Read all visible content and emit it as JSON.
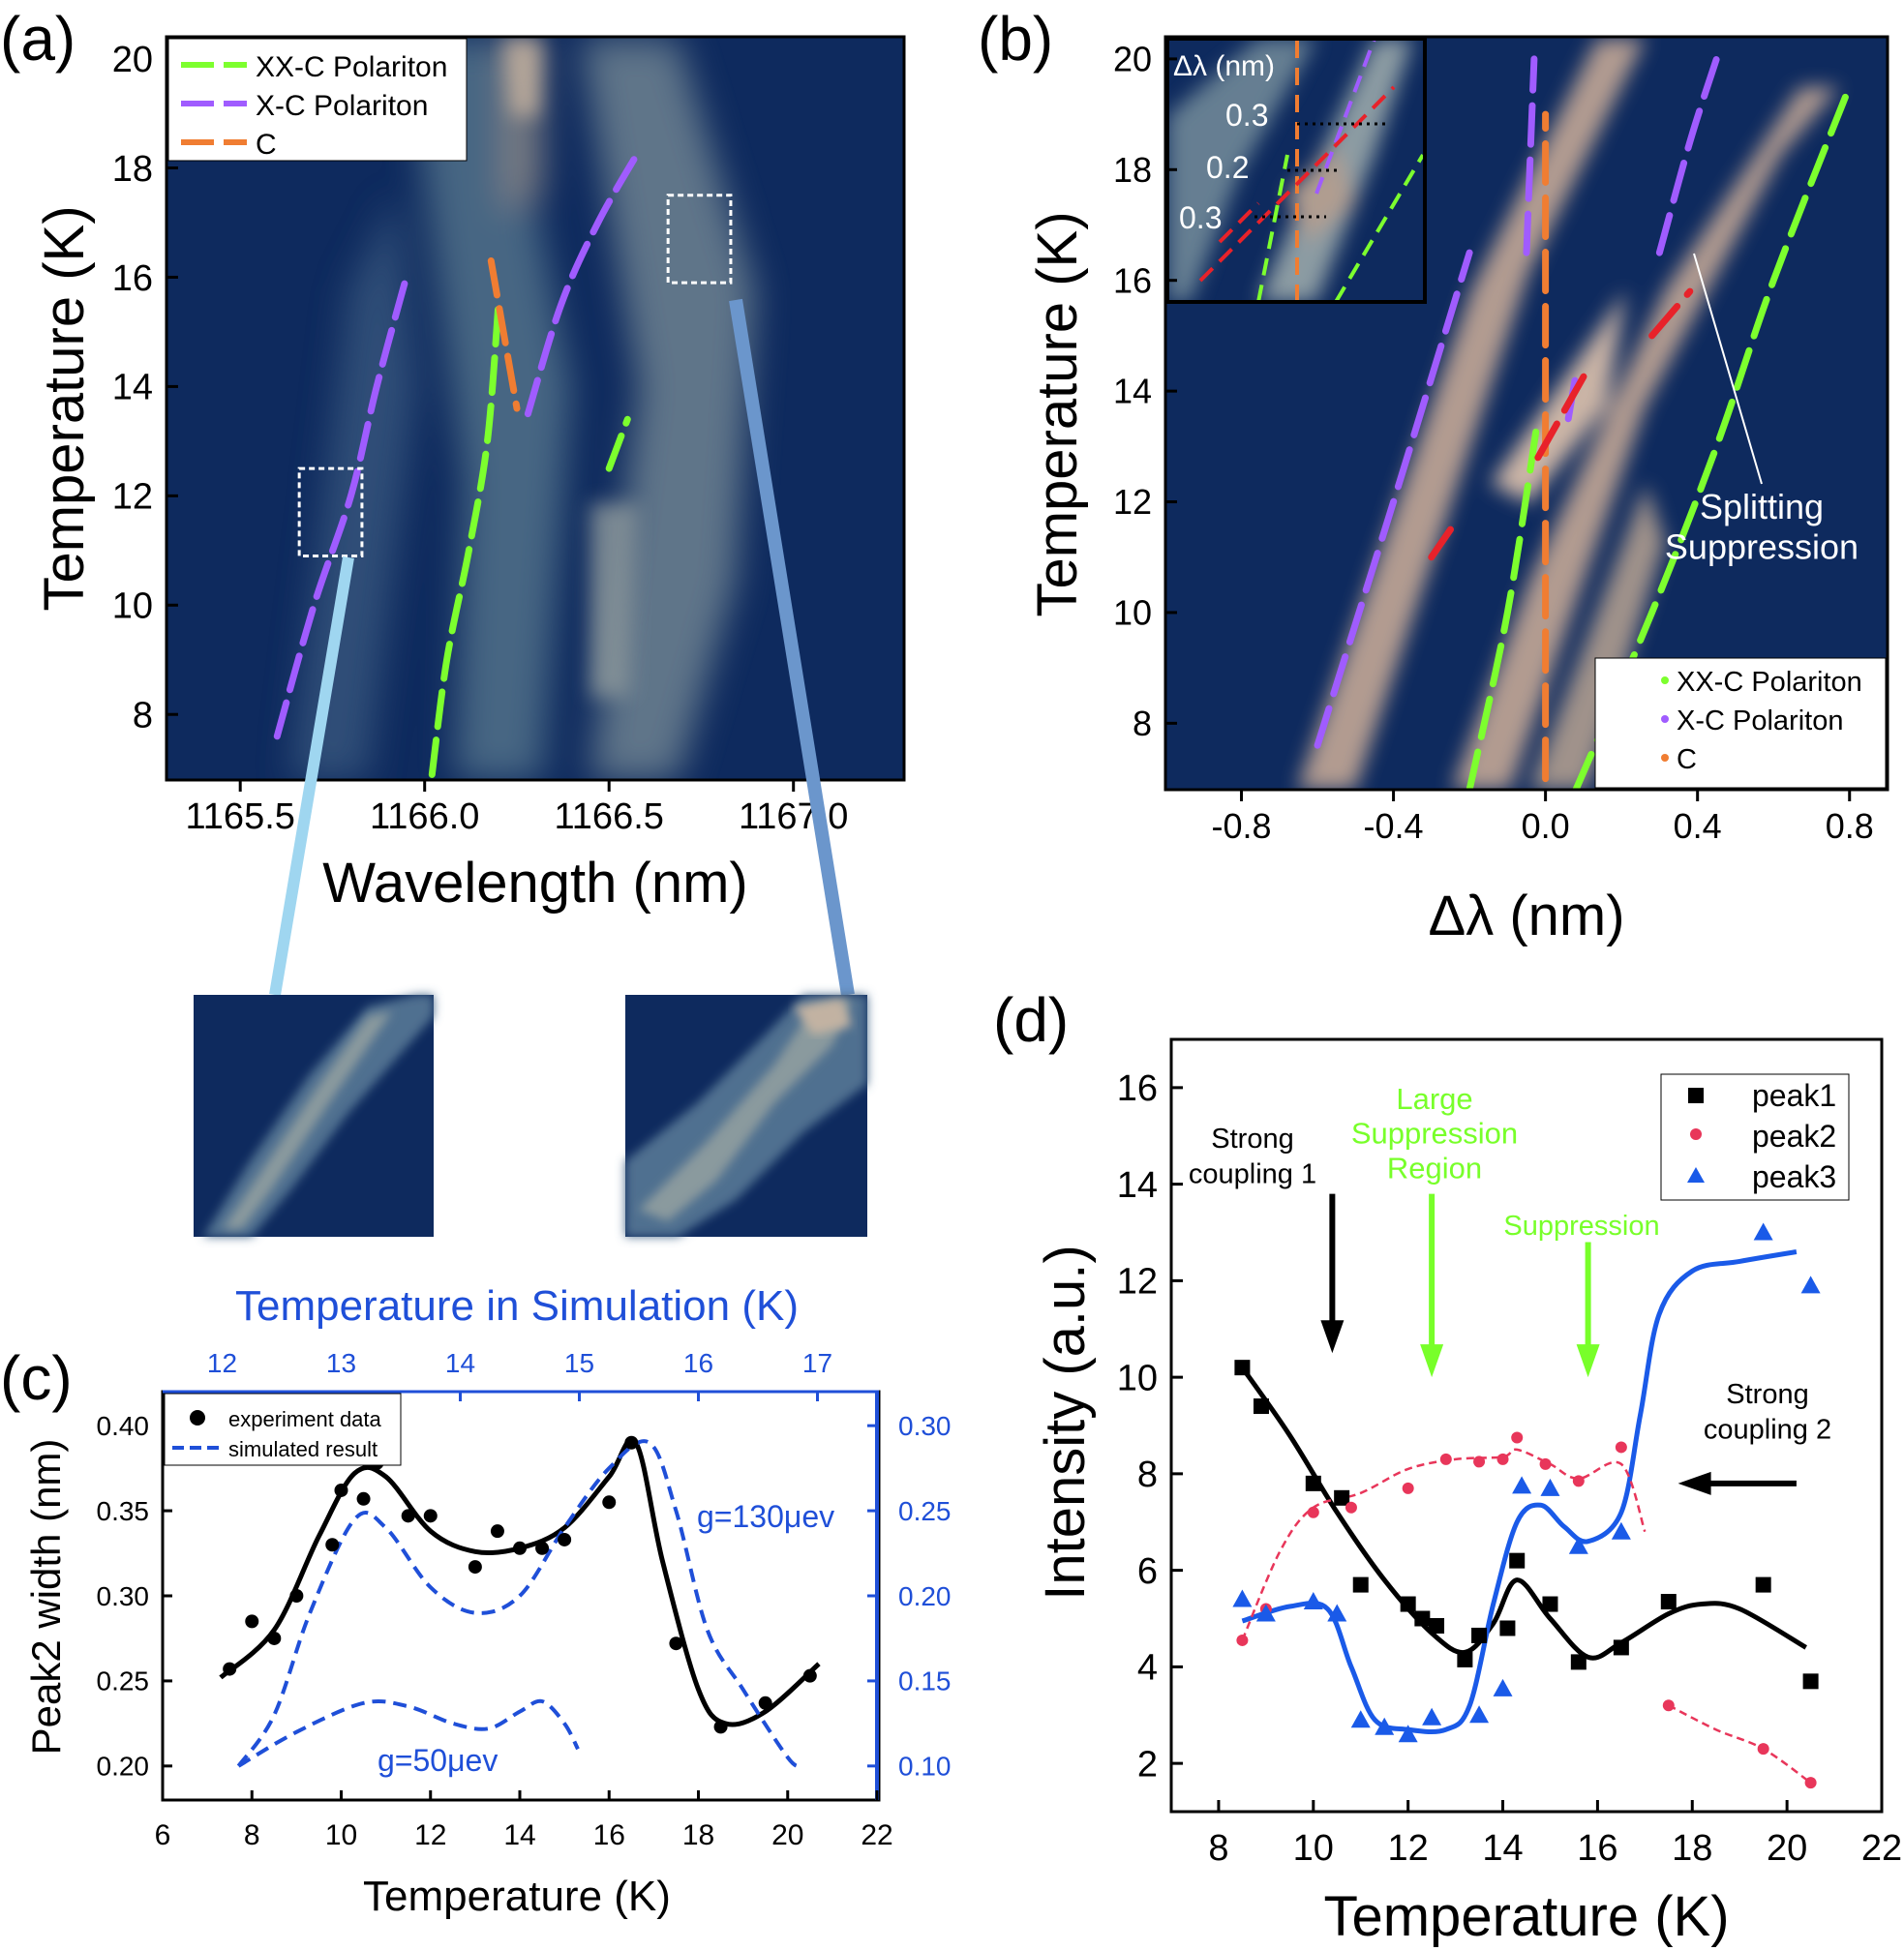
{
  "colors": {
    "xx_c_polariton": "#7dff2e",
    "x_c_polariton": "#a05cff",
    "cavity": "#f07d32",
    "anticrossing": "#e8222a",
    "map_background": "#0e2a5e",
    "map_bright": "#d8bfa8",
    "simulation_axis": "#1f4fd8",
    "peak1": "#000000",
    "peak2": "#e8365a",
    "peak3": "#1a5ae8",
    "annotation_green": "#78ff2a"
  },
  "chart_data": [
    {
      "panel_label": "(a)",
      "type": "heatmap",
      "xlabel": "Wavelength (nm)",
      "ylabel": "Temperature (K)",
      "xlim": [
        1165.3,
        1167.3
      ],
      "ylim": [
        6.8,
        20.4
      ],
      "xticks": [
        "1165.5",
        "1166.0",
        "1166.5",
        "1167.0"
      ],
      "yticks": [
        "8",
        "10",
        "12",
        "14",
        "16",
        "18",
        "20"
      ],
      "legend": [
        "XX-C Polariton",
        "X-C Polariton",
        "C"
      ],
      "legend_position": "top-left",
      "series": [
        {
          "name": "X-C Polariton",
          "segments": [
            {
              "x": [
                1165.6,
                1165.7,
                1165.8,
                1165.87,
                1165.95
              ],
              "y": [
                7.6,
                10,
                12,
                14,
                16
              ]
            },
            {
              "x": [
                1166.28,
                1166.37,
                1166.47,
                1166.58
              ],
              "y": [
                13.5,
                15.5,
                17,
                18.3
              ]
            }
          ]
        },
        {
          "name": "XX-C Polariton",
          "segments": [
            {
              "x": [
                1166.02,
                1166.06,
                1166.12,
                1166.17,
                1166.2
              ],
              "y": [
                6.9,
                9,
                11,
                13,
                15.5
              ]
            },
            {
              "x": [
                1166.5,
                1166.55
              ],
              "y": [
                12.5,
                13.4
              ]
            }
          ]
        },
        {
          "name": "C",
          "segments": [
            {
              "x": [
                1166.18,
                1166.25
              ],
              "y": [
                16.3,
                13.6
              ]
            }
          ]
        }
      ],
      "zoom_boxes": [
        {
          "x": [
            1165.66,
            1165.83
          ],
          "y": [
            10.9,
            12.5
          ]
        },
        {
          "x": [
            1166.66,
            1166.83
          ],
          "y": [
            15.9,
            17.5
          ]
        }
      ]
    },
    {
      "panel_label": "(b)",
      "type": "heatmap",
      "xlabel": "Δλ (nm)",
      "ylabel": "Temperature (K)",
      "xlim": [
        -1.0,
        0.9
      ],
      "ylim": [
        6.8,
        20.4
      ],
      "xticks": [
        "-0.8",
        "-0.4",
        "0.0",
        "0.4",
        "0.8"
      ],
      "yticks": [
        "8",
        "10",
        "12",
        "14",
        "16",
        "18",
        "20"
      ],
      "legend": [
        "XX-C Polariton",
        "X-C Polariton",
        "C"
      ],
      "legend_position": "bottom-right",
      "annotation": "Splitting\nSuppression",
      "inset_title": "Δλ (nm)",
      "inset_labels": [
        "0.3",
        "0.2",
        "0.3"
      ],
      "series": [
        {
          "name": "X-C Polariton",
          "segments": [
            {
              "x": [
                -0.6,
                -0.4,
                -0.2
              ],
              "y": [
                7.6,
                12,
                16.5
              ]
            },
            {
              "x": [
                -0.05,
                -0.03
              ],
              "y": [
                16.5,
                20
              ]
            },
            {
              "x": [
                0.3,
                0.38,
                0.45
              ],
              "y": [
                16.5,
                18.5,
                20
              ]
            },
            {
              "x": [
                0.06,
                0.08
              ],
              "y": [
                13.5,
                14.3
              ]
            }
          ]
        },
        {
          "name": "XX-C Polariton",
          "segments": [
            {
              "x": [
                -0.2,
                -0.1,
                -0.02
              ],
              "y": [
                6.8,
                10,
                13.5
              ]
            },
            {
              "x": [
                0.08,
                0.28,
                0.45,
                0.6,
                0.8
              ],
              "y": [
                6.8,
                10,
                13,
                16,
                19.5
              ]
            }
          ]
        },
        {
          "name": "C",
          "segments": [
            {
              "x": [
                0.0,
                0.0
              ],
              "y": [
                7,
                19
              ]
            }
          ]
        },
        {
          "name": "anticrossing",
          "segments": [
            {
              "x": [
                -0.3,
                -0.25
              ],
              "y": [
                11,
                11.5
              ]
            },
            {
              "x": [
                -0.02,
                0.12
              ],
              "y": [
                12.8,
                14.5
              ]
            },
            {
              "x": [
                0.28,
                0.38
              ],
              "y": [
                15,
                15.8
              ]
            }
          ]
        }
      ]
    },
    {
      "panel_label": "(c)",
      "type": "line",
      "xlabel": "Temperature (K)",
      "ylabel": "Peak2 width (nm)",
      "x2label": "Temperature in Simulation (K)",
      "xlim": [
        6,
        22
      ],
      "ylim": [
        0.18,
        0.42
      ],
      "y2lim": [
        0.08,
        0.32
      ],
      "x2lim": [
        11.5,
        17.5
      ],
      "xticks": [
        "6",
        "8",
        "10",
        "12",
        "14",
        "16",
        "18",
        "20",
        "22"
      ],
      "yticks": [
        "0.20",
        "0.25",
        "0.30",
        "0.35",
        "0.40"
      ],
      "x2ticks": [
        "12",
        "13",
        "14",
        "15",
        "16",
        "17"
      ],
      "y2ticks": [
        "0.10",
        "0.15",
        "0.20",
        "0.25",
        "0.30"
      ],
      "legend": [
        "experiment data",
        "simulated result"
      ],
      "legend_position": "top-left",
      "annotations": [
        "g=130μev",
        "g=50μev"
      ],
      "series": [
        {
          "name": "experiment data",
          "x": [
            7.5,
            8,
            8.5,
            9,
            9.8,
            10,
            10.5,
            10.8,
            11.5,
            12,
            13,
            13.5,
            14,
            14.5,
            15,
            16,
            16.5,
            17.5,
            18.5,
            19.5,
            20.5
          ],
          "y": [
            0.257,
            0.285,
            0.275,
            0.3,
            0.33,
            0.362,
            0.357,
            0.378,
            0.347,
            0.347,
            0.317,
            0.338,
            0.328,
            0.328,
            0.333,
            0.355,
            0.39,
            0.272,
            0.223,
            0.237,
            0.253
          ]
        },
        {
          "name": "fit",
          "x": [
            7.3,
            8.5,
            9.5,
            10.3,
            11,
            12,
            13,
            14,
            15,
            16,
            16.6,
            17.2,
            18,
            18.6,
            19.5,
            20.7
          ],
          "y": [
            0.252,
            0.28,
            0.335,
            0.372,
            0.37,
            0.338,
            0.326,
            0.328,
            0.34,
            0.37,
            0.39,
            0.32,
            0.245,
            0.225,
            0.232,
            0.26
          ]
        },
        {
          "name": "g=130μev",
          "x": [
            7.7,
            8.5,
            9.3,
            10.3,
            11,
            12,
            13,
            14,
            15,
            16,
            16.9,
            17.5,
            18.2,
            19,
            20,
            20.3
          ],
          "y2": [
            0.1,
            0.13,
            0.19,
            0.245,
            0.24,
            0.205,
            0.19,
            0.2,
            0.24,
            0.275,
            0.29,
            0.25,
            0.18,
            0.145,
            0.105,
            0.1
          ]
        },
        {
          "name": "g=50μev",
          "x": [
            7.7,
            9,
            10.5,
            11.5,
            12.5,
            13.3,
            14,
            14.5,
            15,
            15.3
          ],
          "y2": [
            0.1,
            0.12,
            0.137,
            0.135,
            0.125,
            0.122,
            0.132,
            0.138,
            0.125,
            0.11
          ]
        }
      ]
    },
    {
      "panel_label": "(d)",
      "type": "scatter",
      "xlabel": "Temperature (K)",
      "ylabel": "Intensity (a.u.)",
      "xlim": [
        7,
        22
      ],
      "ylim": [
        1,
        17
      ],
      "xticks": [
        "8",
        "10",
        "12",
        "14",
        "16",
        "18",
        "20",
        "22"
      ],
      "yticks": [
        "2",
        "4",
        "6",
        "8",
        "10",
        "12",
        "14",
        "16"
      ],
      "legend": [
        "peak1",
        "peak2",
        "peak3"
      ],
      "legend_position": "top-right",
      "annotations": [
        "Strong\ncoupling 1",
        "Large\nSuppression\nRegion",
        "Suppression",
        "Strong\ncoupling 2"
      ],
      "arrows": [
        {
          "x": 10.4,
          "y_from": 13.8,
          "y_to": 10.5,
          "color": "peak1"
        },
        {
          "x": 12.5,
          "y_from": 13.8,
          "y_to": 10,
          "color": "annotation_green"
        },
        {
          "x": 15.8,
          "y_from": 12.8,
          "y_to": 10,
          "color": "annotation_green"
        },
        {
          "x_from": 20.2,
          "x_to": 17.7,
          "y": 7.8,
          "color": "peak1"
        }
      ],
      "series": [
        {
          "name": "peak1",
          "x": [
            8.5,
            8.9,
            10,
            10.6,
            11,
            12,
            12.3,
            12.6,
            13.2,
            13.5,
            14.1,
            14.3,
            15,
            15.6,
            16.5,
            17.5,
            19.5,
            20.5
          ],
          "y": [
            10.2,
            9.4,
            7.8,
            7.5,
            5.7,
            5.3,
            5.0,
            4.85,
            4.15,
            4.65,
            4.8,
            6.2,
            5.3,
            4.1,
            4.4,
            5.35,
            5.7,
            3.7
          ]
        },
        {
          "name": "peak2",
          "x": [
            8.5,
            9,
            10,
            10.8,
            12,
            12.8,
            13.5,
            14,
            14.3,
            14.9,
            15.6,
            16.5,
            17.5,
            19.5,
            20.5
          ],
          "y": [
            4.55,
            5.2,
            7.2,
            7.3,
            7.7,
            8.3,
            8.25,
            8.3,
            8.75,
            8.2,
            7.85,
            8.55,
            3.2,
            2.3,
            1.6
          ]
        },
        {
          "name": "peak3",
          "x": [
            8.5,
            9,
            10,
            10.5,
            11,
            11.5,
            12,
            12.5,
            13.5,
            14,
            14.4,
            15,
            15.6,
            16.5,
            19.5,
            20.5
          ],
          "y": [
            5.4,
            5.1,
            5.35,
            5.1,
            2.9,
            2.75,
            2.6,
            2.95,
            3.0,
            3.55,
            7.75,
            7.7,
            6.5,
            6.8,
            13.0,
            11.9
          ]
        },
        {
          "name": "peak1 fit",
          "x": [
            8.5,
            9.5,
            10.5,
            11.5,
            12.5,
            13.2,
            13.8,
            14.3,
            15,
            15.8,
            16.5,
            17.5,
            18.2,
            19,
            20.4
          ],
          "y": [
            10.2,
            8.8,
            7.2,
            5.8,
            4.7,
            4.3,
            4.9,
            5.8,
            5.0,
            4.2,
            4.5,
            5.1,
            5.3,
            5.2,
            4.4
          ]
        },
        {
          "name": "peak2 fit",
          "x": [
            8.5,
            9.3,
            10,
            11,
            12,
            13,
            14,
            14.3,
            15,
            15.6,
            16.5,
            17
          ],
          "y": [
            4.55,
            6.4,
            7.3,
            7.6,
            8.1,
            8.3,
            8.35,
            8.5,
            8.2,
            7.9,
            8.2,
            6.8
          ]
        },
        {
          "name": "peak2 fit tail",
          "x": [
            17.5,
            18.5,
            19.5,
            20.5
          ],
          "y": [
            3.2,
            2.7,
            2.3,
            1.6
          ]
        },
        {
          "name": "peak3 fit",
          "x": [
            8.5,
            9.5,
            10.3,
            10.8,
            11.3,
            12,
            12.8,
            13.3,
            13.8,
            14.3,
            14.8,
            15.3,
            15.8,
            16.5,
            16.9,
            17.3,
            18,
            19,
            20.2
          ],
          "y": [
            4.95,
            5.25,
            5.2,
            4.0,
            2.9,
            2.7,
            2.7,
            3.2,
            5.3,
            7.0,
            7.35,
            6.9,
            6.6,
            7.2,
            9.2,
            11.3,
            12.2,
            12.4,
            12.6
          ]
        }
      ]
    }
  ]
}
